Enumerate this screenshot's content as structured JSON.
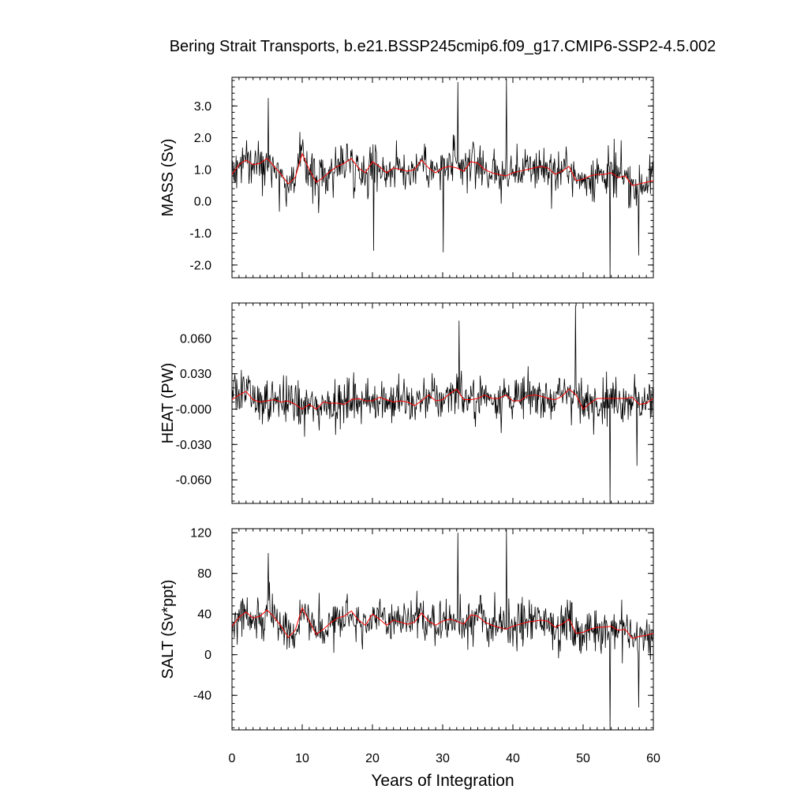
{
  "chart_data": {
    "type": "line",
    "title": "Bering Strait Transports, b.e21.BSSP245cmip6.f09_g17.CMIP6-SSP2-4.5.002",
    "xlabel": "Years of Integration",
    "xlim": [
      0,
      60
    ],
    "x_ticks": [
      "0",
      "10",
      "20",
      "30",
      "40",
      "50",
      "60"
    ],
    "line_colors": {
      "monthly": "#000000",
      "annual_mean": "#ff0000"
    },
    "panels": [
      {
        "ylabel": "MASS (Sv)",
        "ylim": [
          -2.4,
          3.9
        ],
        "y_tick_values": [
          3.0,
          2.0,
          1.0,
          0.0,
          -1.0,
          -2.0
        ],
        "y_tick_labels": [
          "3.0",
          "2.0",
          "1.0",
          "0.0",
          "-1.0",
          "-2.0"
        ],
        "annual_mean": [
          0.85,
          1.15,
          1.3,
          1.15,
          1.2,
          1.35,
          1.1,
          0.85,
          0.55,
          0.75,
          1.5,
          1.0,
          0.6,
          0.75,
          0.95,
          1.1,
          1.2,
          1.35,
          1.05,
          0.9,
          1.25,
          1.1,
          0.9,
          1.05,
          1.0,
          0.95,
          1.0,
          1.3,
          1.05,
          0.9,
          1.05,
          1.1,
          1.05,
          0.95,
          1.25,
          1.2,
          1.0,
          0.9,
          0.85,
          0.8,
          0.9,
          0.95,
          1.0,
          1.05,
          1.1,
          1.05,
          0.85,
          0.95,
          1.1,
          0.65,
          0.7,
          0.8,
          0.85,
          0.85,
          0.9,
          0.75,
          0.8,
          0.5,
          0.55,
          0.6,
          0.65
        ],
        "monthly_peaks": [
          [
            39.1,
            3.85
          ],
          [
            32.2,
            3.75
          ],
          [
            5.2,
            3.25
          ],
          [
            53.8,
            -2.4
          ],
          [
            20.2,
            -1.55
          ],
          [
            30.1,
            -1.6
          ],
          [
            57.9,
            -1.7
          ]
        ]
      },
      {
        "ylabel": "HEAT (PW)",
        "ylim": [
          -0.08,
          0.09
        ],
        "y_tick_values": [
          0.06,
          0.03,
          0.0,
          -0.03,
          -0.06
        ],
        "y_tick_labels": [
          "0.060",
          "0.030",
          "-0.000",
          "-0.030",
          "-0.060"
        ],
        "annual_mean": [
          0.008,
          0.012,
          0.015,
          0.008,
          0.006,
          0.007,
          0.008,
          0.006,
          0.007,
          0.004,
          0.0,
          0.004,
          0.0,
          0.006,
          0.005,
          0.005,
          0.004,
          0.008,
          0.009,
          0.007,
          0.007,
          0.01,
          0.008,
          0.006,
          0.007,
          0.006,
          0.003,
          0.007,
          0.012,
          0.007,
          0.008,
          0.013,
          0.017,
          0.008,
          0.008,
          0.009,
          0.012,
          0.009,
          0.009,
          0.012,
          0.007,
          0.007,
          0.011,
          0.012,
          0.011,
          0.009,
          0.008,
          0.011,
          0.017,
          0.012,
          0.0,
          0.005,
          0.009,
          0.009,
          0.009,
          0.009,
          0.009,
          0.01,
          0.004,
          0.005,
          0.009
        ],
        "monthly_peaks": [
          [
            48.9,
            0.088
          ],
          [
            32.3,
            0.075
          ],
          [
            53.8,
            -0.08
          ],
          [
            57.7,
            -0.048
          ]
        ]
      },
      {
        "ylabel": "SALT (Sv*ppt)",
        "ylim": [
          -74,
          124
        ],
        "y_tick_values": [
          120,
          80,
          40,
          0,
          -40
        ],
        "y_tick_labels": [
          "120",
          "80",
          "40",
          "0",
          "-40"
        ],
        "annual_mean": [
          28,
          37,
          42,
          36,
          38,
          44,
          37,
          28,
          17,
          24,
          46,
          33,
          20,
          25,
          31,
          36,
          38,
          43,
          34,
          29,
          40,
          35,
          29,
          34,
          32,
          30,
          32,
          41,
          33,
          29,
          33,
          35,
          33,
          30,
          39,
          38,
          32,
          29,
          27,
          25,
          28,
          30,
          32,
          33,
          34,
          33,
          27,
          30,
          35,
          21,
          22,
          25,
          27,
          27,
          28,
          24,
          25,
          16,
          18,
          19,
          21
        ],
        "monthly_peaks": [
          [
            32.2,
            120
          ],
          [
            39.1,
            123
          ],
          [
            5.2,
            100
          ],
          [
            53.8,
            -74
          ],
          [
            57.9,
            -52
          ]
        ]
      }
    ]
  }
}
